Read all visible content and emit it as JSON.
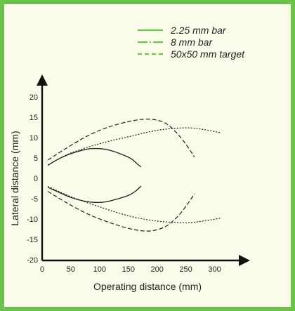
{
  "chart_data": {
    "type": "line",
    "title": "",
    "xlabel": "Operating distance (mm)",
    "ylabel": "Lateral distance (mm)",
    "xlim": [
      0,
      325
    ],
    "ylim": [
      -22,
      22
    ],
    "x_ticks": [
      0,
      50,
      100,
      150,
      200,
      250,
      300
    ],
    "y_ticks": [
      -20,
      -15,
      -10,
      -5,
      0,
      5,
      10,
      15,
      20
    ],
    "grid": false,
    "legend_position": "top-right",
    "series": [
      {
        "name": "2.25 mm bar",
        "style": "solid",
        "color": "#6cc24a",
        "plot_color": "#222222",
        "upper": [
          [
            10,
            3.2
          ],
          [
            25,
            4.5
          ],
          [
            40,
            5.5
          ],
          [
            60,
            6.5
          ],
          [
            80,
            7.2
          ],
          [
            100,
            7.3
          ],
          [
            120,
            6.8
          ],
          [
            140,
            5.8
          ],
          [
            155,
            4.8
          ],
          [
            165,
            3.6
          ],
          [
            172,
            2.8
          ]
        ],
        "lower": [
          [
            10,
            -2.2
          ],
          [
            30,
            -3.5
          ],
          [
            50,
            -4.7
          ],
          [
            70,
            -5.5
          ],
          [
            90,
            -5.9
          ],
          [
            110,
            -5.8
          ],
          [
            130,
            -5.1
          ],
          [
            150,
            -4.2
          ],
          [
            162,
            -3.2
          ],
          [
            172,
            -1.9
          ]
        ]
      },
      {
        "name": "8 mm bar",
        "style": "dashdot",
        "color": "#6cc24a",
        "plot_color": "#222222",
        "upper": [
          [
            10,
            3.3
          ],
          [
            50,
            6.2
          ],
          [
            100,
            8.5
          ],
          [
            150,
            10.2
          ],
          [
            200,
            11.8
          ],
          [
            250,
            12.4
          ],
          [
            280,
            12.0
          ],
          [
            310,
            11.2
          ]
        ],
        "lower": [
          [
            10,
            -2.0
          ],
          [
            50,
            -4.5
          ],
          [
            100,
            -7.0
          ],
          [
            150,
            -9.2
          ],
          [
            200,
            -10.5
          ],
          [
            250,
            -10.9
          ],
          [
            280,
            -10.5
          ],
          [
            310,
            -9.8
          ]
        ]
      },
      {
        "name": "50x50 mm target",
        "style": "dashed",
        "color": "#6cc24a",
        "plot_color": "#222222",
        "upper": [
          [
            10,
            4.5
          ],
          [
            40,
            7.2
          ],
          [
            80,
            10.5
          ],
          [
            120,
            12.8
          ],
          [
            160,
            14.2
          ],
          [
            190,
            14.5
          ],
          [
            215,
            13.5
          ],
          [
            235,
            11.0
          ],
          [
            252,
            8.0
          ],
          [
            265,
            5.2
          ]
        ],
        "lower": [
          [
            10,
            -3.2
          ],
          [
            40,
            -5.8
          ],
          [
            80,
            -8.8
          ],
          [
            120,
            -11.0
          ],
          [
            160,
            -12.6
          ],
          [
            190,
            -12.9
          ],
          [
            215,
            -11.8
          ],
          [
            235,
            -9.5
          ],
          [
            252,
            -6.5
          ],
          [
            265,
            -3.8
          ]
        ]
      }
    ]
  }
}
